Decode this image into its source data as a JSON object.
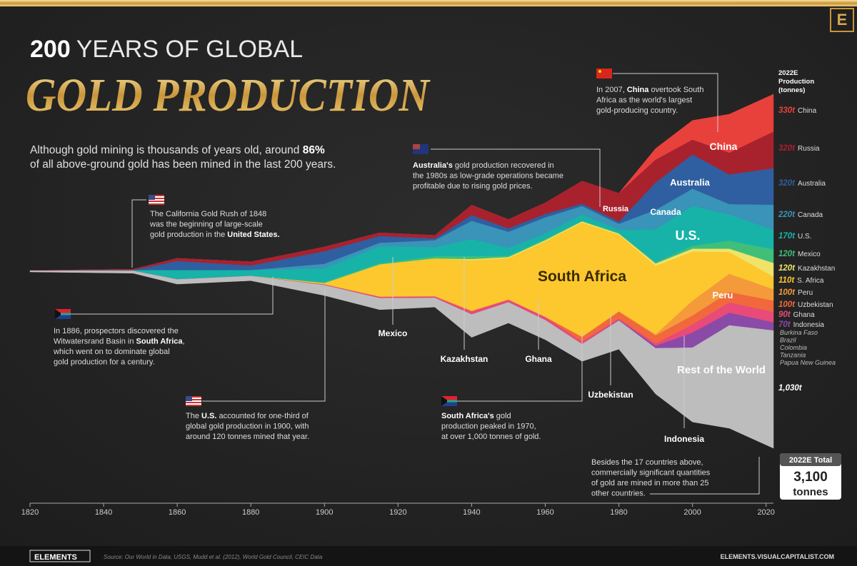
{
  "chart_data": {
    "type": "streamgraph",
    "brand": "E",
    "title_prefix": "200",
    "title_line1": "YEARS OF GLOBAL",
    "title_line2": "GOLD PRODUCTION",
    "subtitle": [
      [
        "Although gold mining is thousands of years old, around ",
        {
          "text": "86%",
          "bold": true
        }
      ],
      [
        "of all above-ground gold has been mined in the last 200 years."
      ]
    ],
    "legend_title": [
      "2022E",
      "Production",
      "(tonnes)"
    ],
    "x": [
      1820,
      1848,
      1860,
      1880,
      1900,
      1915,
      1930,
      1940,
      1950,
      1960,
      1970,
      1980,
      1990,
      2000,
      2010,
      2022
    ],
    "xlim": [
      1820,
      2022
    ],
    "xticks": [
      1820,
      1840,
      1860,
      1880,
      1900,
      1920,
      1940,
      1960,
      1980,
      2000,
      2020
    ],
    "series": [
      {
        "name": "China",
        "color": "#e8413c",
        "values": [
          0,
          0,
          0,
          0,
          0,
          0,
          0,
          0,
          0,
          0,
          0,
          0,
          100,
          170,
          340,
          330
        ],
        "value_labels": [
          null,
          null,
          null,
          null,
          null,
          null,
          null,
          null,
          null,
          null,
          null,
          null,
          null,
          null,
          null,
          "330t"
        ]
      },
      {
        "name": "Russia",
        "color": "#a8222e",
        "values": [
          2,
          10,
          25,
          35,
          40,
          30,
          30,
          90,
          80,
          100,
          200,
          250,
          200,
          130,
          190,
          320
        ],
        "value_labels": [
          null,
          null,
          null,
          null,
          null,
          null,
          null,
          null,
          null,
          null,
          null,
          null,
          null,
          null,
          null,
          "320t"
        ]
      },
      {
        "name": "Australia",
        "color": "#2f5fa0",
        "values": [
          0,
          0,
          80,
          40,
          110,
          60,
          15,
          50,
          30,
          30,
          20,
          20,
          240,
          300,
          260,
          320
        ],
        "value_labels": [
          null,
          null,
          null,
          null,
          null,
          null,
          null,
          null,
          null,
          null,
          null,
          null,
          null,
          null,
          null,
          "320t"
        ]
      },
      {
        "name": "Canada",
        "color": "#3a93b8",
        "values": [
          0,
          0,
          0,
          0,
          40,
          30,
          60,
          160,
          140,
          140,
          75,
          50,
          170,
          150,
          90,
          220
        ],
        "value_labels": [
          null,
          null,
          null,
          null,
          null,
          null,
          null,
          null,
          null,
          null,
          null,
          null,
          null,
          null,
          null,
          "220t"
        ]
      },
      {
        "name": "U.S.",
        "color": "#17b3a8",
        "values": [
          0,
          5,
          80,
          50,
          120,
          150,
          80,
          150,
          70,
          50,
          55,
          30,
          290,
          350,
          230,
          170
        ],
        "value_labels": [
          null,
          null,
          null,
          null,
          null,
          null,
          null,
          null,
          null,
          null,
          null,
          null,
          null,
          null,
          null,
          "170t"
        ]
      },
      {
        "name": "Mexico",
        "color": "#3fbf7a",
        "values": [
          0,
          0,
          0,
          0,
          10,
          10,
          20,
          25,
          12,
          10,
          5,
          5,
          10,
          25,
          70,
          120
        ],
        "value_labels": [
          null,
          null,
          null,
          null,
          null,
          null,
          null,
          null,
          null,
          null,
          null,
          null,
          null,
          null,
          null,
          "120t"
        ]
      },
      {
        "name": "Kazakhstan",
        "color": "#efe36a",
        "values": [
          0,
          0,
          0,
          0,
          0,
          0,
          0,
          10,
          10,
          10,
          10,
          10,
          20,
          25,
          30,
          120
        ],
        "value_labels": [
          null,
          null,
          null,
          null,
          null,
          null,
          null,
          null,
          null,
          null,
          null,
          null,
          null,
          null,
          null,
          "120t"
        ]
      },
      {
        "name": "South Africa",
        "legend_name": "S. Africa",
        "color": "#fcc82e",
        "values": [
          0,
          0,
          0,
          0,
          10,
          280,
          330,
          440,
          360,
          660,
          1000,
          670,
          600,
          430,
          190,
          110
        ],
        "value_labels": [
          null,
          null,
          null,
          null,
          null,
          null,
          null,
          null,
          null,
          null,
          null,
          null,
          null,
          null,
          null,
          "110t"
        ]
      },
      {
        "name": "Peru",
        "color": "#f59a3a",
        "values": [
          0,
          0,
          0,
          0,
          0,
          3,
          3,
          8,
          4,
          3,
          3,
          5,
          10,
          130,
          160,
          100
        ],
        "value_labels": [
          null,
          null,
          null,
          null,
          null,
          null,
          null,
          null,
          null,
          null,
          null,
          null,
          null,
          null,
          null,
          "100t"
        ]
      },
      {
        "name": "Uzbekistan",
        "color": "#f0683c",
        "values": [
          0,
          0,
          0,
          0,
          0,
          0,
          0,
          0,
          0,
          0,
          40,
          60,
          70,
          80,
          90,
          100
        ],
        "value_labels": [
          null,
          null,
          null,
          null,
          null,
          null,
          null,
          null,
          null,
          null,
          null,
          null,
          null,
          null,
          null,
          "100t"
        ]
      },
      {
        "name": "Ghana",
        "color": "#e84a7a",
        "values": [
          0,
          0,
          0,
          0,
          5,
          10,
          10,
          25,
          20,
          25,
          20,
          10,
          20,
          70,
          90,
          90
        ],
        "value_labels": [
          null,
          null,
          null,
          null,
          null,
          null,
          null,
          null,
          null,
          null,
          null,
          null,
          null,
          null,
          null,
          "90t"
        ]
      },
      {
        "name": "Indonesia",
        "color": "#8a4aa8",
        "values": [
          0,
          0,
          0,
          0,
          0,
          0,
          0,
          0,
          0,
          0,
          0,
          5,
          20,
          130,
          110,
          70
        ],
        "value_labels": [
          null,
          null,
          null,
          null,
          null,
          null,
          null,
          null,
          null,
          null,
          null,
          null,
          null,
          null,
          null,
          "70t"
        ]
      },
      {
        "name": "Rest of the World",
        "color": "#bdbdbd",
        "values": [
          10,
          20,
          40,
          40,
          90,
          100,
          80,
          200,
          180,
          170,
          150,
          250,
          400,
          650,
          900,
          1030
        ],
        "value_labels": [
          null,
          null,
          null,
          null,
          null,
          null,
          null,
          null,
          null,
          null,
          null,
          null,
          null,
          null,
          null,
          "1,030t"
        ]
      }
    ],
    "other_listed": [
      "Burkina Faso",
      "Brazil",
      "Colombia",
      "Tanzania",
      "Papua New Guinea"
    ],
    "annotations": [
      {
        "lines": [
          [
            "The California Gold Rush of 1848"
          ],
          [
            "was the beginning of large-scale"
          ],
          [
            "gold production in the ",
            {
              "text": "United States.",
              "bold": true
            }
          ]
        ]
      },
      {
        "lines": [
          [
            "In 1886, prospectors discovered the"
          ],
          [
            "Witwatersrand Basin in ",
            {
              "text": "South Africa",
              "bold": true
            },
            ","
          ],
          [
            "which went on to dominate global"
          ],
          [
            "gold production for a century."
          ]
        ]
      },
      {
        "lines": [
          [
            "The ",
            {
              "text": "U.S.",
              "bold": true
            },
            " accounted for one-third of"
          ],
          [
            "global gold production in 1900, with"
          ],
          [
            "around 120 tonnes mined that year."
          ]
        ]
      },
      {
        "lines": [
          [
            {
              "text": "South Africa's",
              "bold": true
            },
            " gold"
          ],
          [
            "production peaked in 1970,"
          ],
          [
            "at over 1,000 tonnes of gold."
          ]
        ]
      },
      {
        "lines": [
          [
            {
              "text": "Australia's",
              "bold": true
            },
            " gold production recovered in"
          ],
          [
            "the 1980s as low-grade operations became"
          ],
          [
            "profitable due to rising gold prices."
          ]
        ]
      },
      {
        "lines": [
          [
            "In 2007, ",
            {
              "text": "China",
              "bold": true
            },
            " overtook South"
          ],
          [
            "Africa as the world's largest"
          ],
          [
            "gold-producing country."
          ]
        ]
      },
      {
        "lines": [
          [
            "Besides the 17 countries above,"
          ],
          [
            "commercially significant quantities"
          ],
          [
            "of gold are mined in more than 25"
          ],
          [
            "other countries."
          ]
        ]
      }
    ],
    "total": {
      "label": "2022E Total",
      "value": 3100,
      "value_label": "3,100",
      "unit": "tonnes"
    },
    "footer_brand": "ELEMENTS",
    "source": "Source: Our World in Data, USGS, Mudd et al. (2012), World Gold Council, CEIC Data",
    "website": "ELEMENTS.VISUALCAPITALIST.COM"
  }
}
